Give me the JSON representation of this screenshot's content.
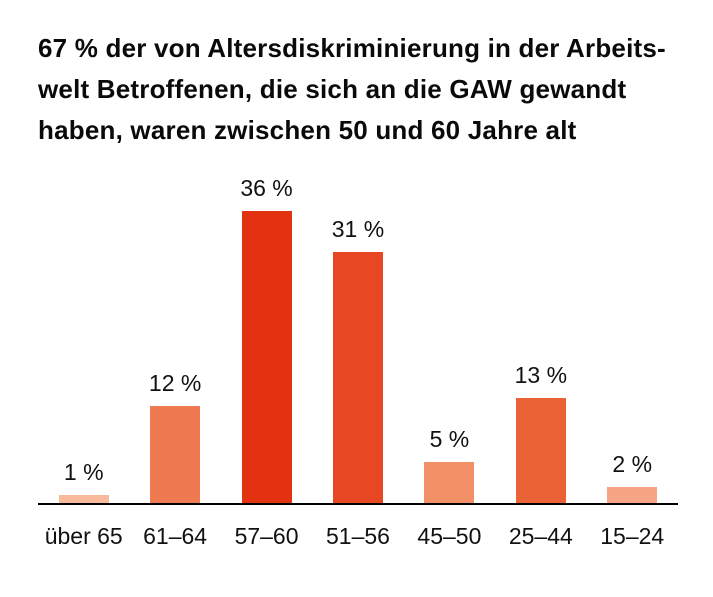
{
  "page": {
    "background_color": "#ffffff",
    "text_color": "#111111"
  },
  "header": {
    "title_lines": [
      "67 % der von Altersdiskriminierung in der Arbeits-",
      "welt Betroffenen, die sich an die GAW gewandt",
      "haben, waren zwischen 50 und 60 Jahre alt"
    ]
  },
  "chart_data": {
    "type": "bar",
    "title": "67 % der von Altersdiskriminierung in der Arbeitswelt Betroffenen, die sich an die GAW gewandt haben, waren zwischen 50 und 60 Jahre alt",
    "categories": [
      "über 65",
      "61–64",
      "57–60",
      "51–56",
      "45–50",
      "25–44",
      "15–24"
    ],
    "values": [
      1,
      12,
      36,
      31,
      5,
      13,
      2
    ],
    "value_labels": [
      "1 %",
      "12 %",
      "36 %",
      "31 %",
      "5 %",
      "13 %",
      "2 %"
    ],
    "unit": "%",
    "bar_colors": [
      "#F8BA9A",
      "#EF7A52",
      "#E23210",
      "#E84724",
      "#F29068",
      "#EB6236",
      "#F5A583"
    ],
    "xlabel": "",
    "ylabel": "",
    "ylim": [
      0,
      40
    ],
    "grid": false,
    "legend": false,
    "axis_line_color": "#000000",
    "label_color": "#111111"
  }
}
